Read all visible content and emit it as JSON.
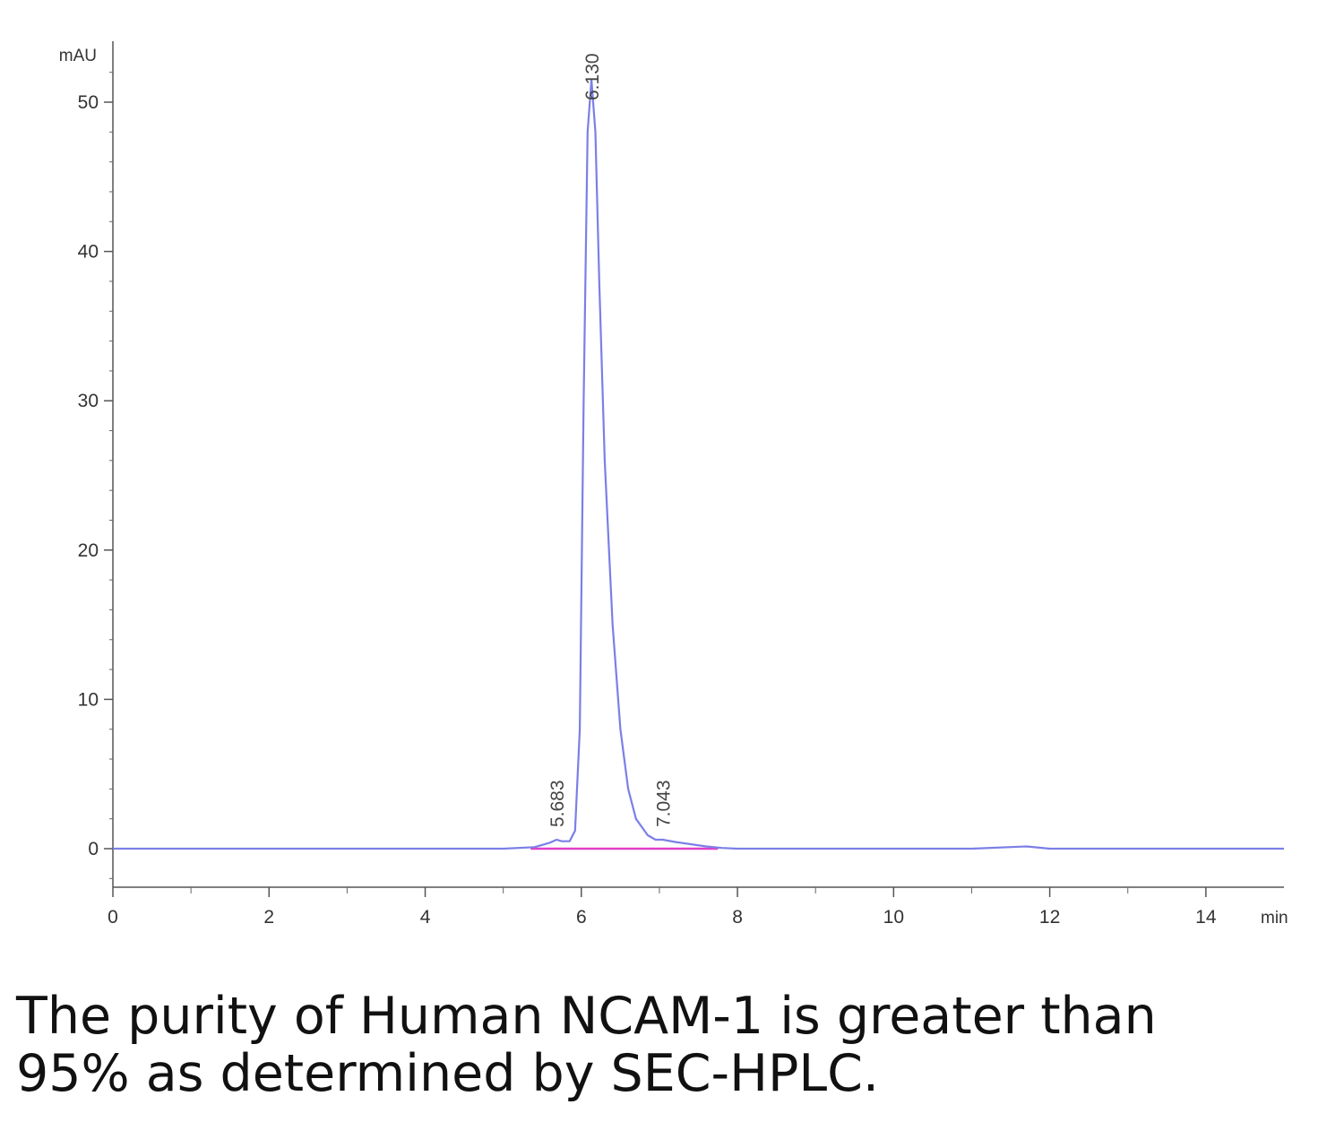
{
  "chart_data": {
    "type": "line",
    "xlabel": "min",
    "ylabel": "mAU",
    "xlim": [
      0,
      15
    ],
    "ylim": [
      -2.6,
      54
    ],
    "x_ticks": [
      0,
      2,
      4,
      6,
      8,
      10,
      12,
      14
    ],
    "y_ticks": [
      0,
      10,
      20,
      30,
      40,
      50
    ],
    "grid": false,
    "legend": "none",
    "series": [
      {
        "color": "#7b7fe6",
        "x": [
          0,
          1,
          2,
          3,
          4,
          5,
          5.4,
          5.6,
          5.683,
          5.75,
          5.85,
          5.92,
          5.98,
          6.03,
          6.08,
          6.13,
          6.18,
          6.23,
          6.3,
          6.4,
          6.5,
          6.6,
          6.7,
          6.85,
          6.95,
          7.043,
          7.2,
          7.4,
          7.6,
          7.8,
          8,
          9,
          10,
          11,
          11.7,
          12,
          13,
          14,
          15
        ],
        "y": [
          0,
          0,
          0,
          0,
          0,
          0,
          0.1,
          0.4,
          0.6,
          0.5,
          0.5,
          1.2,
          8,
          30,
          48,
          51.5,
          48,
          38,
          26,
          15,
          8,
          4,
          2,
          0.9,
          0.6,
          0.6,
          0.45,
          0.3,
          0.15,
          0.05,
          0,
          0,
          0,
          0,
          0.15,
          0,
          0,
          0,
          0
        ]
      }
    ],
    "baseline": {
      "color": "#e040c8",
      "x": [
        5.35,
        7.75
      ],
      "y": [
        0,
        0
      ]
    },
    "peak_labels": [
      {
        "x": 5.683,
        "y": 0.6,
        "label": "5.683"
      },
      {
        "x": 6.13,
        "y": 51.5,
        "label": "6.130"
      },
      {
        "x": 7.043,
        "y": 0.6,
        "label": "7.043"
      }
    ]
  },
  "caption": {
    "line1": "The purity of Human NCAM-1 is greater than",
    "line2": "95% as determined by SEC-HPLC."
  }
}
